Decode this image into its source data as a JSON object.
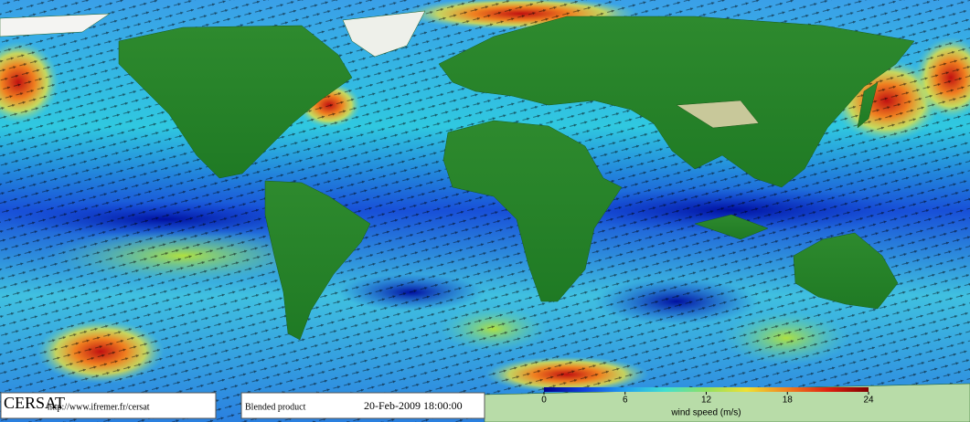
{
  "footer": {
    "logo": "CERSAT",
    "url": "http://www.ifremer.fr/cersat",
    "product": "Blended product",
    "timestamp": "20-Feb-2009 18:00:00"
  },
  "colorbar": {
    "label": "wind speed (m/s)",
    "lim": [
      0,
      24
    ],
    "ticks": [
      0,
      6,
      12,
      18,
      24
    ],
    "colors": [
      "#00008b",
      "#1040e0",
      "#20a0f0",
      "#40e0d0",
      "#90e060",
      "#f0e030",
      "#f08020",
      "#e02010",
      "#800000"
    ]
  }
}
